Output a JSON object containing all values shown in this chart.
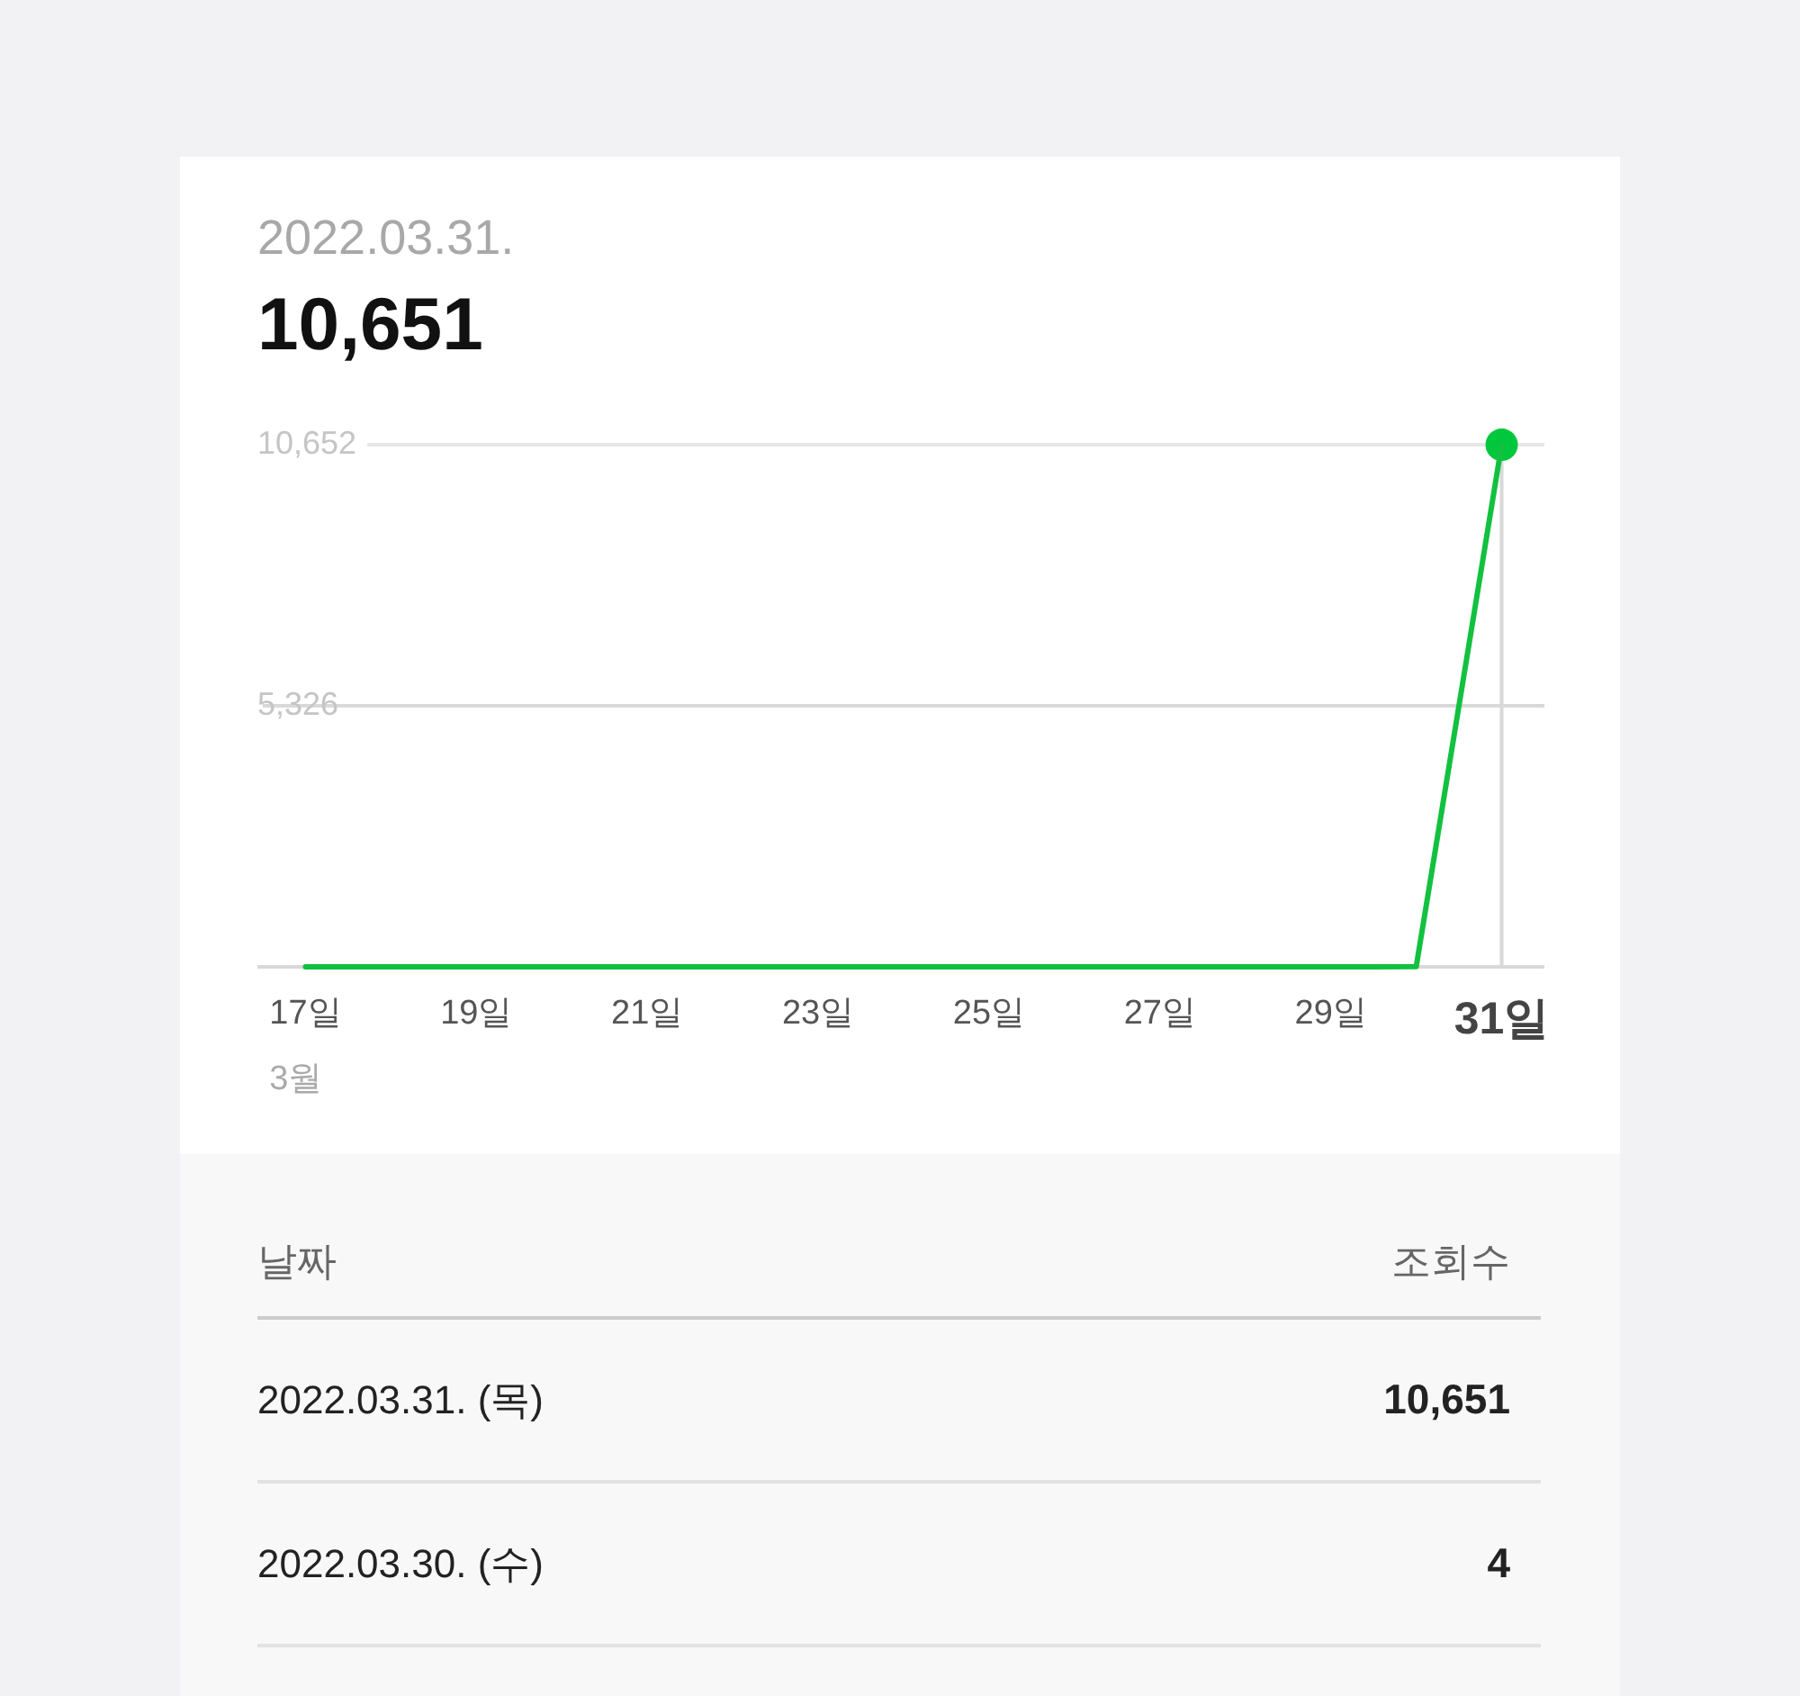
{
  "chart_data": {
    "type": "line",
    "title": "2022.03.31.",
    "subtitle": "10,651",
    "categories": [
      "17일",
      null,
      "19일",
      null,
      "21일",
      null,
      "23일",
      null,
      "25일",
      null,
      "27일",
      null,
      "29일",
      null,
      "31일"
    ],
    "series": [
      {
        "color": "#12c13f",
        "values": [
          0,
          0,
          0,
          0,
          0,
          0,
          0,
          0,
          0,
          0,
          0,
          0,
          0,
          4,
          10651
        ]
      },
      {
        "type": "scatter",
        "marker": "circle",
        "color": "#00c73c",
        "x": [
          "31일"
        ],
        "values": [
          10651
        ]
      }
    ],
    "ylim": [
      0,
      10652
    ],
    "yticks": [
      {
        "value": 0,
        "label": null
      },
      {
        "value": 5326,
        "label": "5,326"
      },
      {
        "value": 10652,
        "label": "10,652"
      }
    ],
    "grid": "y",
    "marker": "none",
    "line_style": "solid",
    "ref_lines": [
      {
        "axis": "x",
        "value": "31일",
        "color": "#d9d9d9"
      }
    ],
    "annotations": [
      "3월",
      "날짜",
      "조회수",
      "2022.03.31. (목)",
      "10,651",
      "2022.03.30. (수)",
      "4"
    ]
  }
}
